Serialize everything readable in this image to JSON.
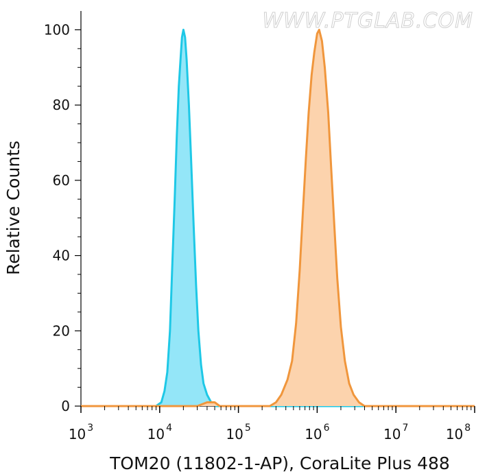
{
  "watermark": "WWW.PTGLAB.COM",
  "chart_data": {
    "type": "area",
    "xlabel": "TOM20 (11802-1-AP), CoraLite Plus 488",
    "ylabel": "Relative Counts",
    "x_scale": "log",
    "xlim": [
      1000,
      100000000
    ],
    "ylim": [
      0,
      105
    ],
    "grid": false,
    "x_ticks": [
      {
        "base": "10",
        "exp": "3",
        "value": 1000
      },
      {
        "base": "10",
        "exp": "4",
        "value": 10000
      },
      {
        "base": "10",
        "exp": "5",
        "value": 100000
      },
      {
        "base": "10",
        "exp": "6",
        "value": 1000000
      },
      {
        "base": "10",
        "exp": "7",
        "value": 10000000
      },
      {
        "base": "10",
        "exp": "8",
        "value": 100000000
      }
    ],
    "y_ticks": [
      0,
      20,
      40,
      60,
      80,
      100
    ],
    "series": [
      {
        "color": "#1ec8e6",
        "fill": "#94e6f8",
        "points": [
          [
            1000,
            0
          ],
          [
            9000,
            0
          ],
          [
            10500,
            1
          ],
          [
            11500,
            4
          ],
          [
            12500,
            9
          ],
          [
            13500,
            20
          ],
          [
            14500,
            38
          ],
          [
            15500,
            55
          ],
          [
            16500,
            72
          ],
          [
            17500,
            85
          ],
          [
            18500,
            93
          ],
          [
            19200,
            98
          ],
          [
            20000,
            100
          ],
          [
            21000,
            98
          ],
          [
            22000,
            92
          ],
          [
            23500,
            80
          ],
          [
            25000,
            66
          ],
          [
            27000,
            48
          ],
          [
            29000,
            32
          ],
          [
            31000,
            20
          ],
          [
            33500,
            11
          ],
          [
            36000,
            6
          ],
          [
            40000,
            3
          ],
          [
            45000,
            1
          ],
          [
            52000,
            0
          ],
          [
            100000000,
            0
          ]
        ]
      },
      {
        "color": "#f0963c",
        "fill": "#fcd3ad",
        "points": [
          [
            1000,
            0
          ],
          [
            30000,
            0
          ],
          [
            40000,
            1
          ],
          [
            50000,
            1
          ],
          [
            58000,
            0
          ],
          [
            250000,
            0
          ],
          [
            300000,
            1
          ],
          [
            350000,
            3
          ],
          [
            420000,
            7
          ],
          [
            480000,
            12
          ],
          [
            540000,
            22
          ],
          [
            600000,
            36
          ],
          [
            660000,
            52
          ],
          [
            720000,
            66
          ],
          [
            780000,
            78
          ],
          [
            850000,
            88
          ],
          [
            920000,
            94
          ],
          [
            1000000,
            99
          ],
          [
            1060000,
            100
          ],
          [
            1150000,
            97
          ],
          [
            1250000,
            90
          ],
          [
            1380000,
            78
          ],
          [
            1500000,
            64
          ],
          [
            1650000,
            48
          ],
          [
            1800000,
            34
          ],
          [
            2000000,
            21
          ],
          [
            2250000,
            12
          ],
          [
            2550000,
            6
          ],
          [
            2900000,
            3
          ],
          [
            3400000,
            1
          ],
          [
            4000000,
            0
          ],
          [
            100000000,
            0
          ]
        ]
      }
    ]
  }
}
